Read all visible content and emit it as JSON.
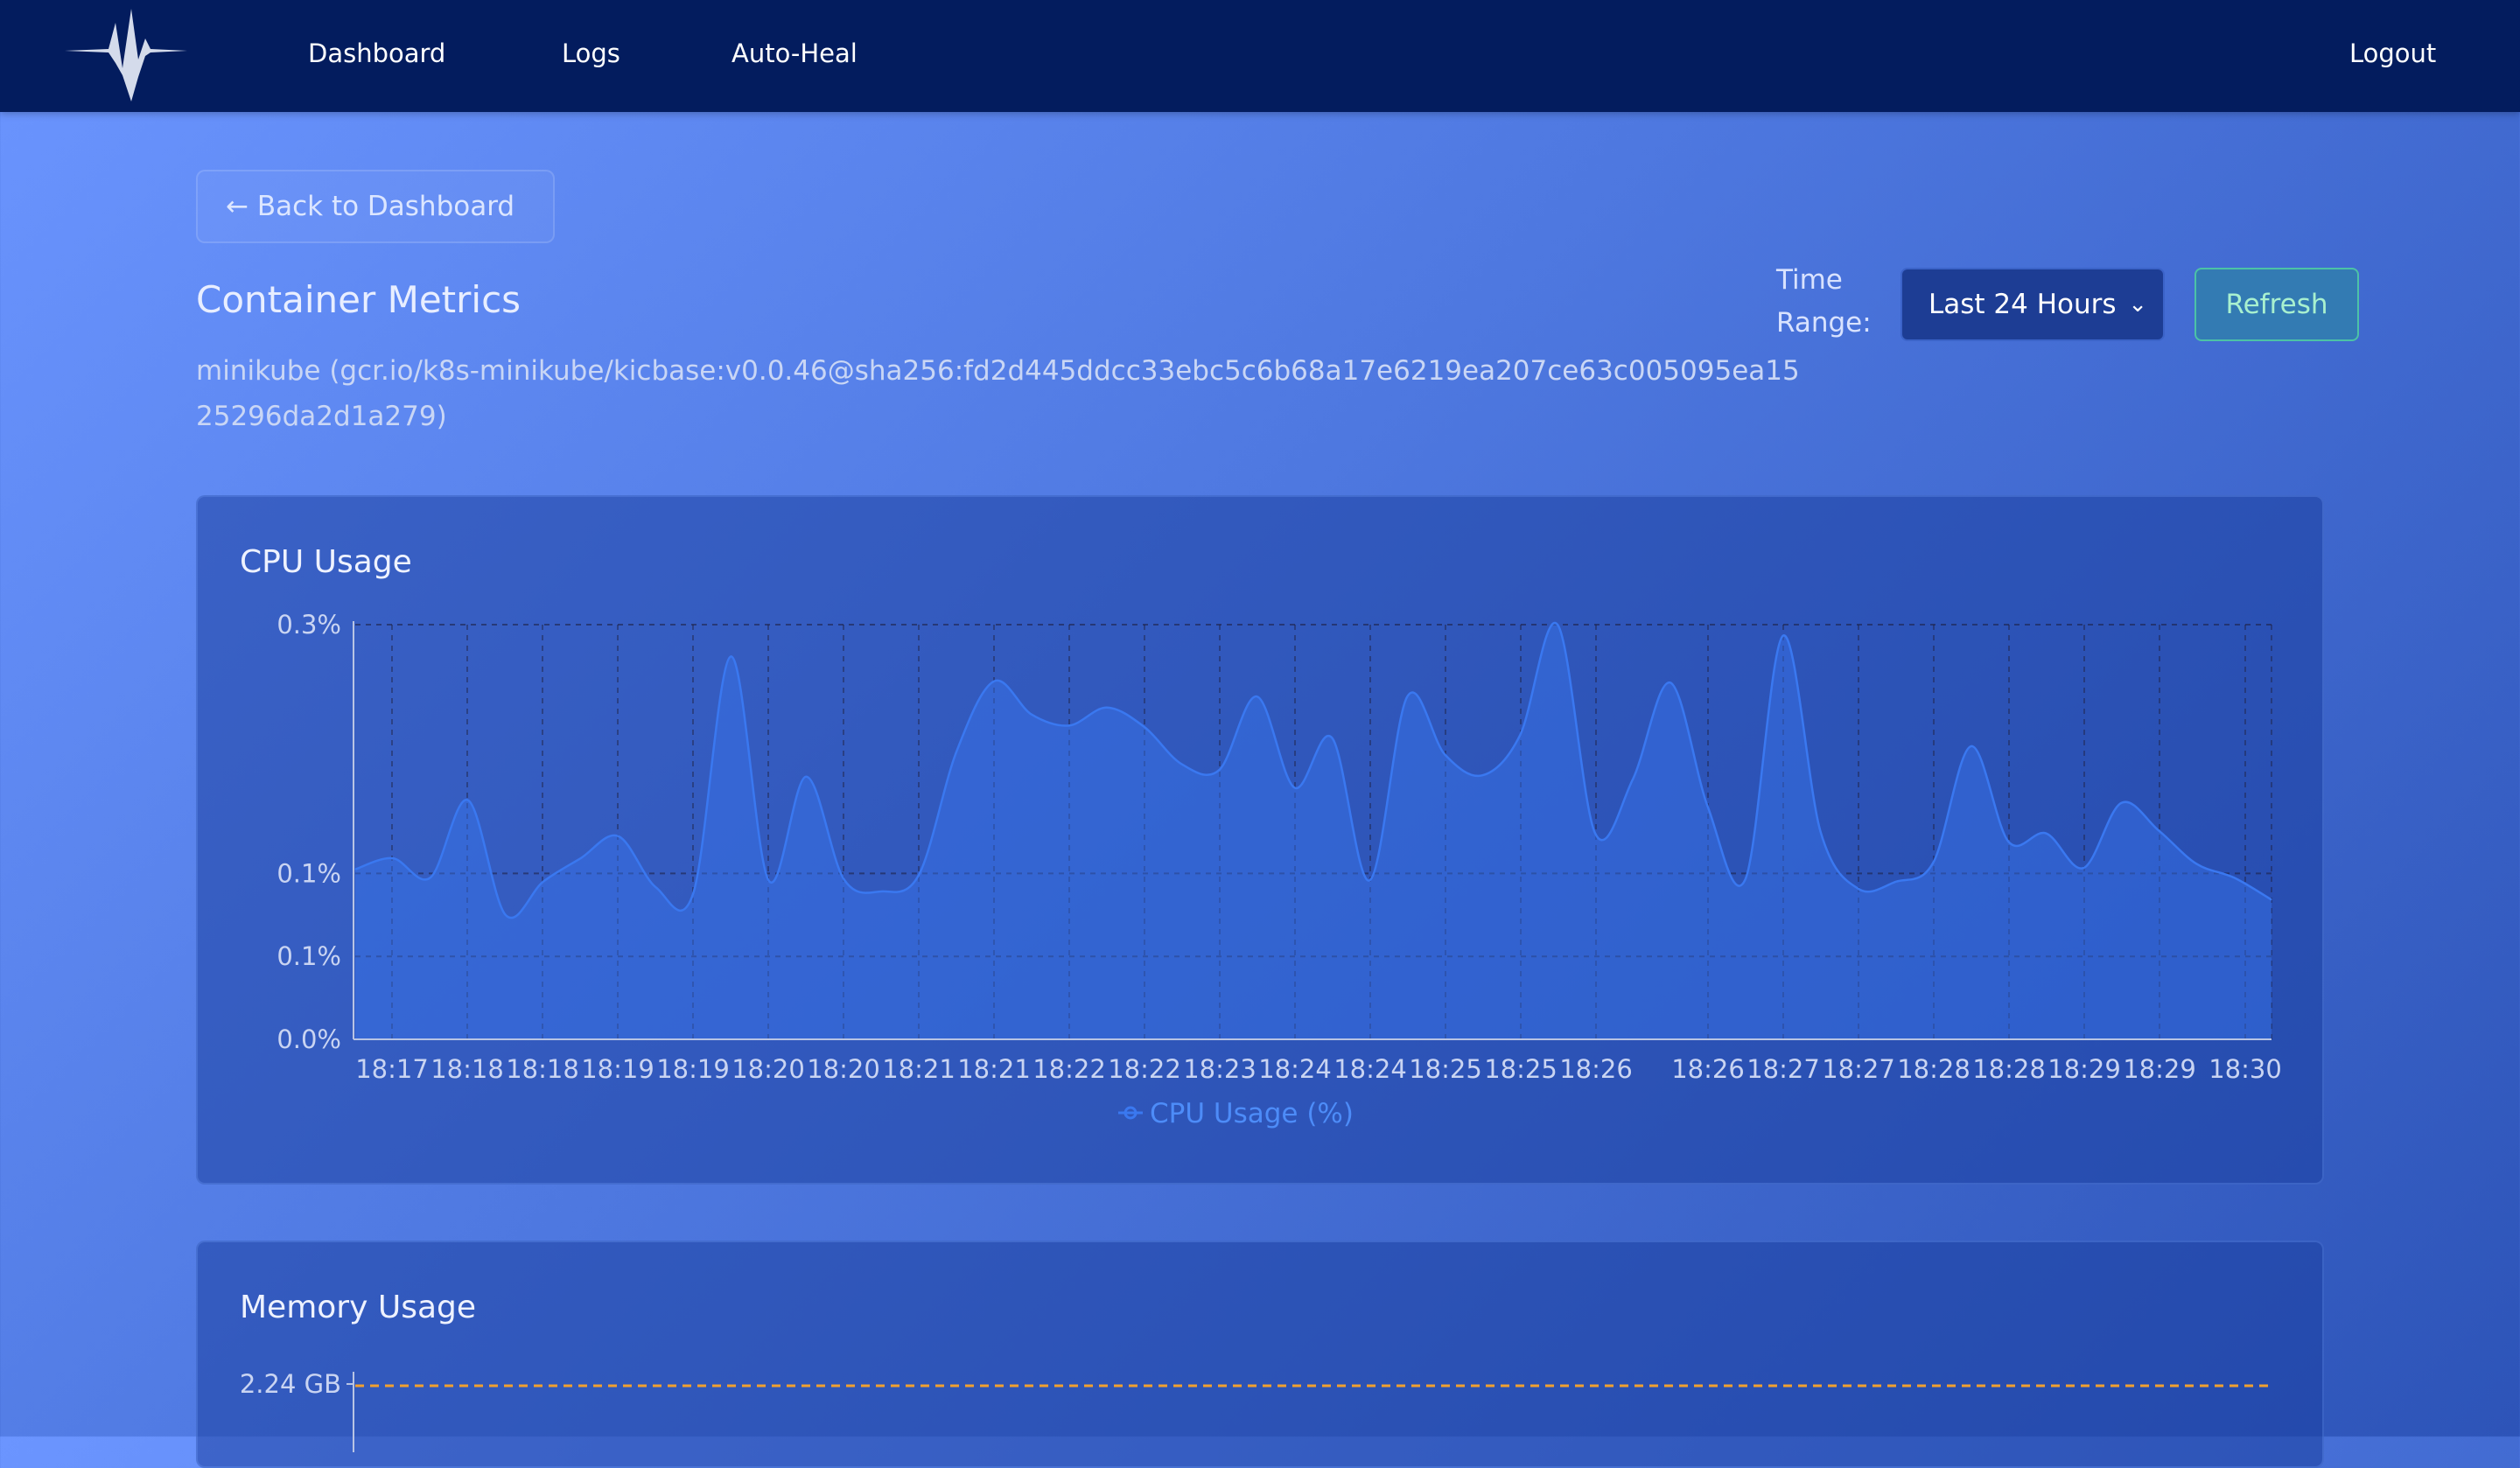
{
  "nav": {
    "links": [
      "Dashboard",
      "Logs",
      "Auto-Heal"
    ],
    "logout": "Logout"
  },
  "back_button": "← Back to Dashboard",
  "page_title": "Container Metrics",
  "container_name": "minikube (gcr.io/k8s-minikube/kicbase:v0.0.46@sha256:fd2d445ddcc33ebc5c6b68a17e6219ea207ce63c005095ea1525296da2d1a279)",
  "time_range": {
    "label": "Time Range:",
    "selected": "Last 24 Hours"
  },
  "refresh_button": "Refresh",
  "colors": {
    "navbar": "#031c5e",
    "cpu_line": "#3a78f0",
    "memory_limit": "#f0a030"
  },
  "cpu_card": {
    "title": "CPU Usage"
  },
  "memory_card": {
    "title": "Memory Usage",
    "y_tick_top": "2.24 GB"
  },
  "chart_data": [
    {
      "type": "area",
      "title": "CPU Usage",
      "ytick_labels": [
        "0.0%",
        "0.1%",
        "0.1%",
        "0.3%"
      ],
      "ylim": [
        0,
        0.3
      ],
      "grid": true,
      "legend": "bottom",
      "series": [
        {
          "name": "CPU Usage (%)",
          "values": [
            0.123,
            0.131,
            0.117,
            0.173,
            0.09,
            0.114,
            0.131,
            0.147,
            0.11,
            0.106,
            0.277,
            0.115,
            0.19,
            0.116,
            0.107,
            0.119,
            0.208,
            0.259,
            0.235,
            0.227,
            0.24,
            0.226,
            0.199,
            0.195,
            0.248,
            0.182,
            0.218,
            0.115,
            0.248,
            0.206,
            0.191,
            0.22,
            0.3,
            0.149,
            0.188,
            0.258,
            0.168,
            0.116,
            0.292,
            0.15,
            0.109,
            0.114,
            0.128,
            0.212,
            0.143,
            0.149,
            0.124,
            0.171,
            0.151,
            0.127,
            0.117,
            0.101
          ]
        }
      ],
      "x_tick_labels": [
        "18:17",
        "18:18",
        "18:18",
        "18:19",
        "18:19",
        "18:20",
        "18:20",
        "18:21",
        "18:21",
        "18:22",
        "18:22",
        "18:23",
        "18:24",
        "18:24",
        "18:25",
        "18:25",
        "18:26",
        "18:26",
        "18:27",
        "18:27",
        "18:28",
        "18:28",
        "18:29",
        "18:29",
        "18:30"
      ]
    },
    {
      "type": "line",
      "title": "Memory Usage",
      "ytick_labels": [
        "2.24 GB"
      ],
      "series": [
        {
          "values": [
            2.24,
            2.24
          ]
        }
      ]
    }
  ]
}
